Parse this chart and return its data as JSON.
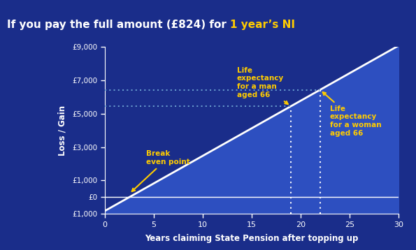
{
  "title_white": "If you pay the full amount (£824) for ",
  "title_yellow": "1 year’s NI",
  "bg_color": "#1a2d8a",
  "title_bg_color": "#0d1a4a",
  "plot_bg_color": "#1a2d8a",
  "line_color": "#ffffff",
  "fill_color": "#2d4fc0",
  "annotation_color": "#ffcc00",
  "dotted_color": "#6699cc",
  "ylabel": "Loss / Gain",
  "xlabel": "Years claiming State Pension after topping up",
  "xmin": 0,
  "xmax": 30,
  "ymin": -1000,
  "ymax": 9000,
  "yticks": [
    -1000,
    0,
    1000,
    3000,
    5000,
    7000,
    9000
  ],
  "ytick_labels": [
    "£1,000",
    "£0",
    "£1,000",
    "£3,000",
    "£5,000",
    "£7,000",
    "£9,000"
  ],
  "xticks": [
    0,
    5,
    10,
    15,
    20,
    25,
    30
  ],
  "ni_cost": 824,
  "breakeven_x": 2.5,
  "man_x": 19,
  "woman_x": 22,
  "man_label": "Life\nexpectancy\nfor a man\naged 66",
  "woman_label": "Life\nexpectancy\nfor a woman\naged 66",
  "break_label": "Break\neven point"
}
